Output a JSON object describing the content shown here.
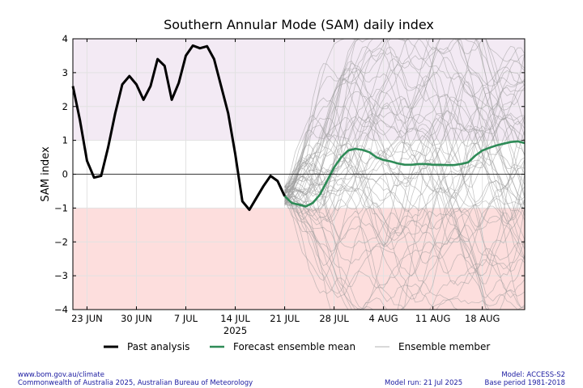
{
  "footer": {
    "url": "www.bom.gov.au/climate",
    "copyright": "Commonwealth of Australia 2025, Australian Bureau of Meteorology",
    "model_run": "Model run: 21 Jul 2025",
    "model": "Model: ACCESS-S2",
    "base_period": "Base period 1981-2018"
  },
  "chart_data": {
    "type": "line",
    "title": "Southern Annular Mode (SAM) daily index",
    "ylabel": "SAM index",
    "xlabel": "",
    "ylim": [
      -4,
      4
    ],
    "yticks": [
      4,
      3,
      2,
      1,
      0,
      -1,
      -2,
      -3,
      -4
    ],
    "ytick_labels": [
      "4",
      "3",
      "2",
      "1",
      "0",
      "−1",
      "−2",
      "−3",
      "−4"
    ],
    "x_start": "2025-06-21",
    "x_end": "2025-08-24",
    "xticks": [
      {
        "date": "2025-06-23",
        "label": "23 JUN"
      },
      {
        "date": "2025-06-30",
        "label": "30 JUN"
      },
      {
        "date": "2025-07-07",
        "label": "7 JUL"
      },
      {
        "date": "2025-07-14",
        "label": "14 JUL"
      },
      {
        "date": "2025-07-21",
        "label": "21 JUL"
      },
      {
        "date": "2025-07-28",
        "label": "28 JUL"
      },
      {
        "date": "2025-08-04",
        "label": "4 AUG"
      },
      {
        "date": "2025-08-11",
        "label": "11 AUG"
      },
      {
        "date": "2025-08-18",
        "label": "18 AUG"
      }
    ],
    "year_label": {
      "date": "2025-07-14",
      "label": "2025"
    },
    "shaded_bands": [
      {
        "from": 1,
        "to": 4,
        "color": "#f3eaf4"
      },
      {
        "from": -4,
        "to": -1,
        "color": "#fddedd"
      }
    ],
    "grid": true,
    "legend_position": "bottom",
    "legend": [
      "Past analysis",
      "Forecast ensemble mean",
      "Ensemble member"
    ],
    "series": [
      {
        "name": "Past analysis",
        "color": "#000000",
        "x": [
          "2025-06-21",
          "2025-06-22",
          "2025-06-23",
          "2025-06-24",
          "2025-06-25",
          "2025-06-26",
          "2025-06-27",
          "2025-06-28",
          "2025-06-29",
          "2025-06-30",
          "2025-07-01",
          "2025-07-02",
          "2025-07-03",
          "2025-07-04",
          "2025-07-05",
          "2025-07-06",
          "2025-07-07",
          "2025-07-08",
          "2025-07-09",
          "2025-07-10",
          "2025-07-11",
          "2025-07-12",
          "2025-07-13",
          "2025-07-14",
          "2025-07-15",
          "2025-07-16",
          "2025-07-17",
          "2025-07-18",
          "2025-07-19",
          "2025-07-20",
          "2025-07-21"
        ],
        "values": [
          2.6,
          1.6,
          0.4,
          -0.1,
          -0.05,
          0.8,
          1.8,
          2.65,
          2.9,
          2.65,
          2.2,
          2.6,
          3.4,
          3.2,
          2.2,
          2.7,
          3.5,
          3.8,
          3.72,
          3.78,
          3.4,
          2.6,
          1.8,
          0.6,
          -0.8,
          -1.05,
          -0.7,
          -0.35,
          -0.05,
          -0.2,
          -0.65
        ]
      },
      {
        "name": "Forecast ensemble mean",
        "color": "#2e8b57",
        "x": [
          "2025-07-21",
          "2025-07-22",
          "2025-07-23",
          "2025-07-24",
          "2025-07-25",
          "2025-07-26",
          "2025-07-27",
          "2025-07-28",
          "2025-07-29",
          "2025-07-30",
          "2025-07-31",
          "2025-08-01",
          "2025-08-02",
          "2025-08-03",
          "2025-08-04",
          "2025-08-05",
          "2025-08-06",
          "2025-08-07",
          "2025-08-08",
          "2025-08-09",
          "2025-08-10",
          "2025-08-11",
          "2025-08-12",
          "2025-08-13",
          "2025-08-14",
          "2025-08-15",
          "2025-08-16",
          "2025-08-17",
          "2025-08-18",
          "2025-08-19",
          "2025-08-20",
          "2025-08-21",
          "2025-08-22",
          "2025-08-23",
          "2025-08-24"
        ],
        "values": [
          -0.65,
          -0.85,
          -0.9,
          -0.95,
          -0.85,
          -0.6,
          -0.2,
          0.2,
          0.5,
          0.7,
          0.75,
          0.72,
          0.65,
          0.5,
          0.42,
          0.38,
          0.32,
          0.28,
          0.28,
          0.3,
          0.3,
          0.28,
          0.28,
          0.27,
          0.27,
          0.3,
          0.35,
          0.55,
          0.7,
          0.78,
          0.85,
          0.9,
          0.95,
          0.97,
          0.92
        ]
      }
    ],
    "ensemble": {
      "name": "Ensemble member",
      "color": "#9a9a9a",
      "members": 60,
      "start": "2025-07-21",
      "end": "2025-08-24",
      "start_value": -0.65
    }
  }
}
